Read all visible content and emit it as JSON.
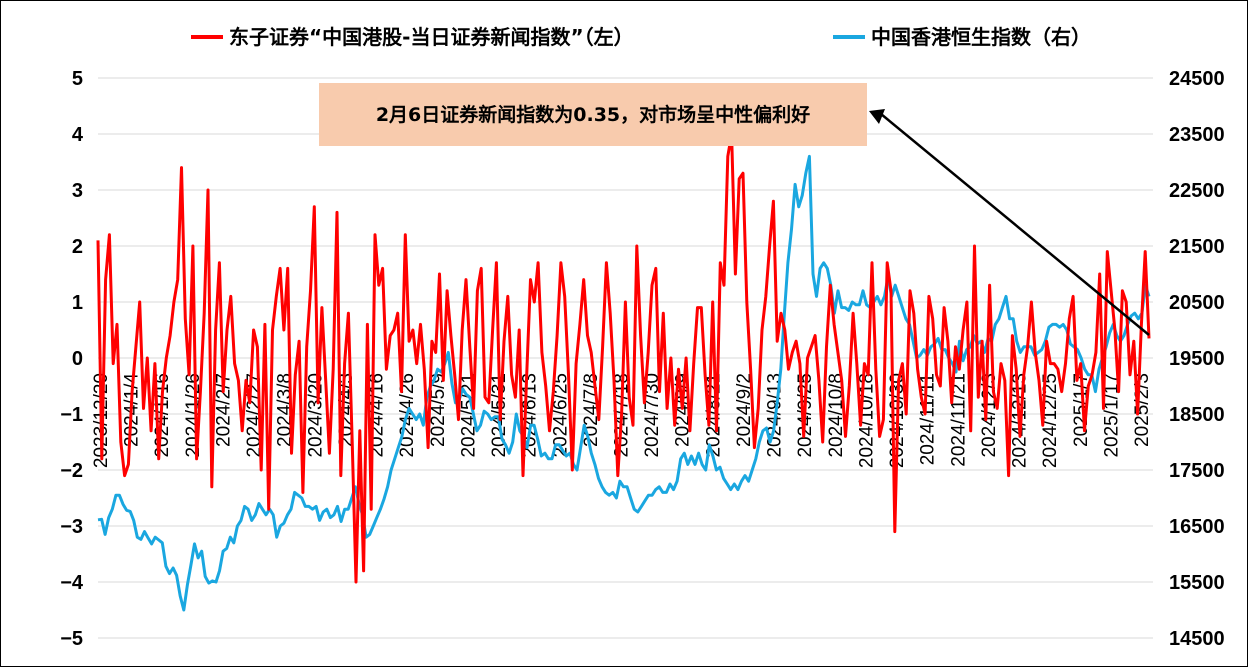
{
  "chart_data": {
    "type": "line",
    "legend": {
      "placement": "top",
      "entries": [
        {
          "name": "东子证券“中国港股-当日证券新闻指数”（左）",
          "color": "#ff0000"
        },
        {
          "name": "中国香港恒生指数（右）",
          "color": "#1aa7e0"
        }
      ]
    },
    "annotation": {
      "text": "2月6日证券新闻指数为0.35，对市场呈中性偏利好",
      "background": "#f8cbad",
      "arrow_target_date": "2025/2/6"
    },
    "x_start": "2023/12/20",
    "x_end": "2025/2/6",
    "x_tick_labels": [
      "2023/12/20",
      "2024/1/4",
      "2024/1/16",
      "2024/1/26",
      "2024/2/7",
      "2024/2/27",
      "2024/3/8",
      "2024/3/20",
      "2024/4/3",
      "2024/4/16",
      "2024/4/26",
      "2024/5/9",
      "2024/5/21",
      "2024/5/31",
      "2024/6/13",
      "2024/6/25",
      "2024/7/8",
      "2024/7/18",
      "2024/7/30",
      "2024/8/9",
      "2024/8/21",
      "2024/9/2",
      "2024/9/13",
      "2024/9/25",
      "2024/10/8",
      "2024/10/18",
      "2024/10/30",
      "2024/11/11",
      "2024/11/21",
      "2024/12/3",
      "2024/12/13",
      "2024/12/25",
      "2025/1/7",
      "2025/1/17",
      "2025/2/3"
    ],
    "y_left": {
      "ticks": [
        5,
        4,
        3,
        2,
        1,
        0,
        -1,
        -2,
        -3,
        -4,
        -5
      ],
      "min": -5,
      "max": 5
    },
    "y_right": {
      "ticks": [
        24500,
        23500,
        22500,
        21500,
        20500,
        19500,
        18500,
        17500,
        16500,
        15500,
        14500
      ],
      "min": 14500,
      "max": 24500
    },
    "grid": "horizontal",
    "series": [
      {
        "name": "东子证券“中国港股-当日证券新闻指数”（左）",
        "axis": "left",
        "color": "#ff0000",
        "values": [
          2.1,
          -1.8,
          1.4,
          2.2,
          -0.1,
          0.6,
          -1.5,
          -2.1,
          -1.9,
          -0.6,
          0.2,
          1.0,
          -0.9,
          0,
          -1.3,
          -0.1,
          -1.8,
          -0.6,
          0,
          0.4,
          1.0,
          1.4,
          3.4,
          0.7,
          -0.3,
          2.0,
          -1.8,
          -0.6,
          0.8,
          3.0,
          -2.3,
          0.5,
          1.7,
          -0.6,
          0.5,
          1.1,
          -0.1,
          -0.4,
          -1.3,
          -0.4,
          -0.8,
          0.5,
          0.2,
          -2.0,
          0.6,
          -2.7,
          0.5,
          1.1,
          1.6,
          0.5,
          1.6,
          -1.7,
          -0.3,
          0.3,
          -2.4,
          0.2,
          1.2,
          2.7,
          -0.8,
          0.9,
          -0.4,
          -1.7,
          -0.2,
          2.6,
          -2.1,
          -0.1,
          0.8,
          -1.5,
          -4.0,
          -1.3,
          -3.8,
          0.6,
          -2.7,
          2.2,
          1.3,
          1.6,
          -0.2,
          0.4,
          0.5,
          0.8,
          -0.6,
          2.2,
          0.3,
          0.5,
          -0.1,
          0.6,
          -0.2,
          -1.6,
          0.3,
          0.1,
          1.5,
          -0.4,
          1.2,
          0.4,
          -0.3,
          -1.1,
          0.5,
          1.4,
          0.2,
          -0.9,
          1.2,
          1.6,
          -0.7,
          -0.8,
          0.5,
          1.7,
          -1.1,
          0.3,
          1.1,
          -0.3,
          -0.7,
          0.5,
          -2.1,
          -0.3,
          1.4,
          1.0,
          1.7,
          0.1,
          -0.5,
          -1.3,
          -0.6,
          0.4,
          1.7,
          1.1,
          -0.3,
          -2.0,
          -0.1,
          0.6,
          1.4,
          0.4,
          0.1,
          -0.5,
          -1.1,
          0.2,
          1.7,
          0.8,
          -0.4,
          -2.1,
          -1.0,
          1.0,
          -0.7,
          -1.2,
          2.0,
          0.4,
          -0.8,
          0.1,
          1.3,
          1.6,
          -0.6,
          0.8,
          -0.9,
          0,
          -1.2,
          -0.2,
          -0.9,
          0,
          -1.3,
          -0.1,
          0.9,
          0.9,
          -0.3,
          -1.2,
          1.0,
          -1.3,
          1.7,
          1.3,
          3.6,
          4.0,
          1.5,
          3.2,
          3.3,
          1.0,
          -0.2,
          -1.6,
          -0.9,
          0.5,
          1.1,
          2.0,
          2.8,
          0.3,
          0.8,
          0.5,
          -0.2,
          0.1,
          0.3,
          -0.1,
          -1.4,
          0,
          0.2,
          0.4,
          -0.4,
          -1.5,
          0.2,
          1.3,
          0.6,
          0.1,
          -0.4,
          -1.4,
          -0.5,
          0.8,
          -0.1,
          -1.2,
          -0.1,
          -0.3,
          1.7,
          -0.2,
          -1.4,
          -1.1,
          1.7,
          1.2,
          -3.1,
          -0.4,
          -0.1,
          -1.0,
          1.2,
          0.8,
          -0.2,
          -0.7,
          -1.0,
          1.1,
          0.7,
          -0.3,
          -0.5,
          0.9,
          0.3,
          -0.8,
          0.2,
          -0.2,
          0.5,
          1.0,
          -1.3,
          2.0,
          -0.7,
          0.3,
          -1.1,
          1.3,
          -0.6,
          -0.9,
          -0.1,
          -0.4,
          -2.1,
          0.4,
          -0.2,
          -1.4,
          -0.3,
          0.2,
          1.0,
          0.1,
          -0.4,
          -1.2,
          0.3,
          -0.1,
          -0.1,
          -0.2,
          -0.6,
          -0.1,
          0.7,
          1.1,
          -0.4,
          -0.1,
          -1.3,
          -0.5,
          -0.3,
          0.1,
          1.5,
          -0.9,
          1.9,
          1.2,
          0.5,
          -0.6,
          1.2,
          1.0,
          -0.3,
          0.3,
          -1.0,
          0.6,
          1.9,
          0.35
        ]
      },
      {
        "name": "中国香港恒生指数（右）",
        "axis": "right",
        "color": "#1aa7e0",
        "values": [
          16610,
          16620,
          16350,
          16650,
          16800,
          17050,
          17050,
          16890,
          16780,
          16760,
          16600,
          16300,
          16260,
          16400,
          16290,
          16180,
          16300,
          16250,
          16200,
          15780,
          15650,
          15750,
          15620,
          15250,
          15000,
          15450,
          15800,
          16180,
          15930,
          16050,
          15600,
          15480,
          15520,
          15500,
          15700,
          16050,
          16100,
          16300,
          16200,
          16500,
          16600,
          16850,
          16800,
          16600,
          16700,
          16900,
          16800,
          16700,
          16800,
          16700,
          16300,
          16500,
          16550,
          16700,
          16800,
          17100,
          17050,
          17000,
          16850,
          16850,
          16800,
          16850,
          16600,
          16750,
          16800,
          16650,
          16700,
          16850,
          16580,
          16800,
          16800,
          17000,
          17200,
          16900,
          16700,
          16300,
          16350,
          16500,
          16650,
          16800,
          16980,
          17200,
          17500,
          17700,
          17900,
          18100,
          18400,
          18600,
          18500,
          18400,
          18500,
          18300,
          18800,
          19000,
          19100,
          19300,
          19250,
          19400,
          19600,
          19050,
          18700,
          18750,
          18950,
          18850,
          18800,
          18500,
          18200,
          18300,
          18550,
          18500,
          18400,
          18450,
          18450,
          18050,
          17950,
          17800,
          18000,
          18500,
          18200,
          18100,
          17900,
          18300,
          18300,
          18050,
          17750,
          17800,
          17700,
          17700,
          17950,
          17950,
          17850,
          17750,
          17800,
          17600,
          17500,
          17900,
          18300,
          18100,
          17800,
          17600,
          17350,
          17200,
          17100,
          17050,
          17100,
          17000,
          17300,
          17200,
          17200,
          17000,
          16800,
          16750,
          16850,
          16950,
          17050,
          17050,
          17150,
          17200,
          17100,
          17100,
          17250,
          17150,
          17300,
          17700,
          17800,
          17600,
          17750,
          17600,
          17800,
          17600,
          17500,
          17950,
          17750,
          17500,
          17550,
          17350,
          17250,
          17150,
          17250,
          17150,
          17300,
          17400,
          17300,
          17500,
          17700,
          18000,
          18200,
          18250,
          18000,
          18200,
          18700,
          19300,
          20300,
          21200,
          21800,
          22600,
          22200,
          22400,
          22800,
          23100,
          21000,
          20600,
          21100,
          21200,
          21100,
          20800,
          20300,
          20700,
          20400,
          20400,
          20350,
          20500,
          20450,
          20450,
          20700,
          20450,
          20400,
          20500,
          20600,
          20450,
          20600,
          20950,
          20600,
          20800,
          20600,
          20400,
          20200,
          20100,
          19800,
          19500,
          19550,
          19650,
          19550,
          19700,
          19750,
          19850,
          19650,
          19650,
          19500,
          19400,
          19250,
          19800,
          19450,
          19650,
          19700,
          19900,
          19750,
          19800,
          19600,
          19850,
          19800,
          20100,
          20200,
          20400,
          20600,
          20200,
          20200,
          19800,
          19600,
          19700,
          19700,
          19700,
          19550,
          19600,
          19650,
          19800,
          20050,
          20100,
          20100,
          20050,
          20100,
          20000,
          19750,
          19700,
          19650,
          19500,
          19300,
          19200,
          19200,
          18900,
          19300,
          19500,
          19700,
          19950,
          20100,
          19900,
          19800,
          19900,
          20100,
          20250,
          20300,
          20200,
          20300,
          20800,
          20600
        ]
      }
    ]
  }
}
